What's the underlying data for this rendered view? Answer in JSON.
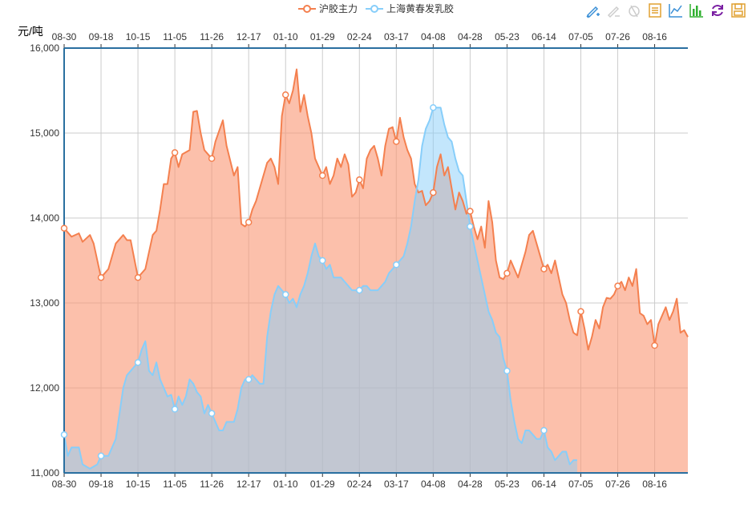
{
  "legend": [
    {
      "name": "沪胶主力",
      "color": "#f4804f"
    },
    {
      "name": "上海黄春发乳胶",
      "color": "#87cefa"
    }
  ],
  "toolbox": [
    {
      "name": "mark-icon",
      "color": "#3a8fd6"
    },
    {
      "name": "mark-undo-icon",
      "color": "#cccccc"
    },
    {
      "name": "mark-clear-icon",
      "color": "#cccccc"
    },
    {
      "name": "data-view-icon",
      "color": "#e0a030"
    },
    {
      "name": "line-chart-icon",
      "color": "#3a8fd6"
    },
    {
      "name": "bar-chart-icon",
      "color": "#30b030"
    },
    {
      "name": "restore-icon",
      "color": "#7a1fa2"
    },
    {
      "name": "save-image-icon",
      "color": "#e0a030"
    }
  ],
  "chart_data": {
    "type": "area",
    "ylabel": "元/吨",
    "ylim": [
      11000,
      16000
    ],
    "yticks": [
      11000,
      12000,
      13000,
      14000,
      15000,
      16000
    ],
    "ytick_labels": [
      "11,000",
      "12,000",
      "13,000",
      "14,000",
      "15,000",
      "16,000"
    ],
    "xtick_labels": [
      "08-30",
      "09-18",
      "10-15",
      "11-05",
      "11-26",
      "12-17",
      "01-10",
      "01-29",
      "02-24",
      "03-17",
      "04-08",
      "04-28",
      "05-23",
      "06-14",
      "07-05",
      "07-26",
      "08-16"
    ],
    "n_points": 170,
    "grid": true,
    "legend_position": "top-center",
    "series": [
      {
        "name": "沪胶主力",
        "color": "#f4804f",
        "fill": "rgba(250,150,115,0.6)",
        "points": [
          [
            0,
            13880
          ],
          [
            2,
            13780
          ],
          [
            4,
            13820
          ],
          [
            5,
            13720
          ],
          [
            7,
            13800
          ],
          [
            8,
            13700
          ],
          [
            10,
            13300
          ],
          [
            12,
            13400
          ],
          [
            13,
            13550
          ],
          [
            14,
            13700
          ],
          [
            16,
            13800
          ],
          [
            17,
            13740
          ],
          [
            18,
            13740
          ],
          [
            20,
            13300
          ],
          [
            21,
            13350
          ],
          [
            22,
            13400
          ],
          [
            24,
            13800
          ],
          [
            25,
            13850
          ],
          [
            26,
            14100
          ],
          [
            27,
            14400
          ],
          [
            28,
            14400
          ],
          [
            29,
            14700
          ],
          [
            30,
            14770
          ],
          [
            31,
            14600
          ],
          [
            32,
            14750
          ],
          [
            34,
            14800
          ],
          [
            35,
            15250
          ],
          [
            36,
            15260
          ],
          [
            37,
            15000
          ],
          [
            38,
            14800
          ],
          [
            40,
            14700
          ],
          [
            41,
            14900
          ],
          [
            43,
            15150
          ],
          [
            44,
            14850
          ],
          [
            46,
            14500
          ],
          [
            47,
            14600
          ],
          [
            48,
            13930
          ],
          [
            49,
            13900
          ],
          [
            50,
            13950
          ],
          [
            51,
            14100
          ],
          [
            52,
            14200
          ],
          [
            53,
            14350
          ],
          [
            54,
            14500
          ],
          [
            55,
            14650
          ],
          [
            56,
            14700
          ],
          [
            57,
            14600
          ],
          [
            58,
            14400
          ],
          [
            59,
            15200
          ],
          [
            60,
            15450
          ],
          [
            61,
            15350
          ],
          [
            62,
            15500
          ],
          [
            63,
            15750
          ],
          [
            64,
            15250
          ],
          [
            65,
            15450
          ],
          [
            66,
            15200
          ],
          [
            67,
            15000
          ],
          [
            68,
            14700
          ],
          [
            69,
            14600
          ],
          [
            70,
            14500
          ],
          [
            71,
            14600
          ],
          [
            72,
            14400
          ],
          [
            73,
            14500
          ],
          [
            74,
            14700
          ],
          [
            75,
            14600
          ],
          [
            76,
            14750
          ],
          [
            77,
            14630
          ],
          [
            78,
            14250
          ],
          [
            79,
            14300
          ],
          [
            80,
            14450
          ],
          [
            81,
            14350
          ],
          [
            82,
            14700
          ],
          [
            83,
            14800
          ],
          [
            84,
            14850
          ],
          [
            85,
            14700
          ],
          [
            86,
            14500
          ],
          [
            87,
            14850
          ],
          [
            88,
            15050
          ],
          [
            89,
            15070
          ],
          [
            90,
            14900
          ],
          [
            91,
            15180
          ],
          [
            92,
            14950
          ],
          [
            93,
            14800
          ],
          [
            94,
            14700
          ],
          [
            95,
            14400
          ],
          [
            96,
            14300
          ],
          [
            97,
            14320
          ],
          [
            98,
            14150
          ],
          [
            99,
            14200
          ],
          [
            100,
            14300
          ],
          [
            101,
            14600
          ],
          [
            102,
            14750
          ],
          [
            103,
            14500
          ],
          [
            104,
            14600
          ],
          [
            105,
            14350
          ],
          [
            106,
            14100
          ],
          [
            107,
            14300
          ],
          [
            108,
            14200
          ],
          [
            109,
            14050
          ],
          [
            110,
            14080
          ],
          [
            111,
            13900
          ],
          [
            112,
            13750
          ],
          [
            113,
            13900
          ],
          [
            114,
            13650
          ],
          [
            115,
            14200
          ],
          [
            116,
            13950
          ],
          [
            117,
            13500
          ],
          [
            118,
            13300
          ],
          [
            119,
            13280
          ],
          [
            120,
            13350
          ],
          [
            121,
            13500
          ],
          [
            122,
            13400
          ],
          [
            123,
            13300
          ],
          [
            124,
            13450
          ],
          [
            125,
            13600
          ],
          [
            126,
            13800
          ],
          [
            127,
            13850
          ],
          [
            128,
            13700
          ],
          [
            129,
            13550
          ],
          [
            130,
            13400
          ],
          [
            131,
            13450
          ],
          [
            132,
            13350
          ],
          [
            133,
            13500
          ],
          [
            134,
            13300
          ],
          [
            135,
            13100
          ],
          [
            136,
            13000
          ],
          [
            137,
            12800
          ],
          [
            138,
            12650
          ],
          [
            139,
            12620
          ],
          [
            140,
            12900
          ],
          [
            141,
            12700
          ],
          [
            142,
            12450
          ],
          [
            143,
            12600
          ],
          [
            144,
            12800
          ],
          [
            145,
            12700
          ],
          [
            146,
            12950
          ],
          [
            147,
            13060
          ],
          [
            148,
            13050
          ],
          [
            149,
            13100
          ],
          [
            150,
            13200
          ],
          [
            151,
            13250
          ],
          [
            152,
            13150
          ],
          [
            153,
            13300
          ],
          [
            154,
            13200
          ],
          [
            155,
            13400
          ],
          [
            156,
            12880
          ],
          [
            157,
            12850
          ],
          [
            158,
            12750
          ],
          [
            159,
            12800
          ],
          [
            160,
            12500
          ],
          [
            161,
            12750
          ],
          [
            162,
            12850
          ],
          [
            163,
            12950
          ],
          [
            164,
            12800
          ],
          [
            165,
            12900
          ],
          [
            166,
            13050
          ],
          [
            167,
            12650
          ],
          [
            168,
            12680
          ],
          [
            169,
            12600
          ]
        ]
      },
      {
        "name": "上海黄春发乳胶",
        "color": "#87cefa",
        "fill": "rgba(135,206,250,0.5)",
        "points": [
          [
            0,
            11450
          ],
          [
            1,
            11200
          ],
          [
            2,
            11300
          ],
          [
            4,
            11300
          ],
          [
            5,
            11100
          ],
          [
            7,
            11050
          ],
          [
            9,
            11100
          ],
          [
            10,
            11200
          ],
          [
            12,
            11200
          ],
          [
            14,
            11400
          ],
          [
            15,
            11700
          ],
          [
            16,
            12000
          ],
          [
            17,
            12150
          ],
          [
            18,
            12200
          ],
          [
            19,
            12250
          ],
          [
            20,
            12300
          ],
          [
            21,
            12450
          ],
          [
            22,
            12550
          ],
          [
            23,
            12200
          ],
          [
            24,
            12150
          ],
          [
            25,
            12300
          ],
          [
            26,
            12100
          ],
          [
            27,
            12000
          ],
          [
            28,
            11900
          ],
          [
            29,
            11920
          ],
          [
            30,
            11750
          ],
          [
            31,
            11900
          ],
          [
            32,
            11800
          ],
          [
            33,
            11900
          ],
          [
            34,
            12100
          ],
          [
            35,
            12050
          ],
          [
            36,
            11950
          ],
          [
            37,
            11900
          ],
          [
            38,
            11700
          ],
          [
            39,
            11800
          ],
          [
            40,
            11700
          ],
          [
            41,
            11600
          ],
          [
            42,
            11500
          ],
          [
            43,
            11500
          ],
          [
            44,
            11600
          ],
          [
            45,
            11600
          ],
          [
            46,
            11600
          ],
          [
            47,
            11750
          ],
          [
            48,
            12000
          ],
          [
            49,
            12100
          ],
          [
            50,
            12100
          ],
          [
            51,
            12150
          ],
          [
            52,
            12100
          ],
          [
            53,
            12050
          ],
          [
            54,
            12050
          ],
          [
            55,
            12600
          ],
          [
            56,
            12900
          ],
          [
            57,
            13100
          ],
          [
            58,
            13200
          ],
          [
            59,
            13150
          ],
          [
            60,
            13100
          ],
          [
            61,
            13000
          ],
          [
            62,
            13050
          ],
          [
            63,
            12950
          ],
          [
            64,
            13100
          ],
          [
            65,
            13200
          ],
          [
            66,
            13350
          ],
          [
            67,
            13550
          ],
          [
            68,
            13700
          ],
          [
            69,
            13550
          ],
          [
            70,
            13500
          ],
          [
            71,
            13400
          ],
          [
            72,
            13450
          ],
          [
            73,
            13300
          ],
          [
            74,
            13300
          ],
          [
            75,
            13300
          ],
          [
            76,
            13250
          ],
          [
            77,
            13200
          ],
          [
            78,
            13150
          ],
          [
            79,
            13150
          ],
          [
            80,
            13150
          ],
          [
            81,
            13200
          ],
          [
            82,
            13200
          ],
          [
            83,
            13150
          ],
          [
            84,
            13150
          ],
          [
            85,
            13150
          ],
          [
            86,
            13200
          ],
          [
            87,
            13250
          ],
          [
            88,
            13350
          ],
          [
            89,
            13400
          ],
          [
            90,
            13450
          ],
          [
            91,
            13500
          ],
          [
            92,
            13550
          ],
          [
            93,
            13700
          ],
          [
            94,
            13900
          ],
          [
            95,
            14200
          ],
          [
            96,
            14450
          ],
          [
            97,
            14850
          ],
          [
            98,
            15050
          ],
          [
            99,
            15150
          ],
          [
            100,
            15300
          ],
          [
            101,
            15300
          ],
          [
            102,
            15300
          ],
          [
            103,
            15100
          ],
          [
            104,
            14950
          ],
          [
            105,
            14900
          ],
          [
            106,
            14700
          ],
          [
            107,
            14550
          ],
          [
            108,
            14500
          ],
          [
            109,
            14200
          ],
          [
            110,
            13900
          ],
          [
            111,
            13700
          ],
          [
            112,
            13500
          ],
          [
            113,
            13300
          ],
          [
            114,
            13100
          ],
          [
            115,
            12900
          ],
          [
            116,
            12800
          ],
          [
            117,
            12650
          ],
          [
            118,
            12600
          ],
          [
            119,
            12350
          ],
          [
            120,
            12200
          ],
          [
            121,
            11850
          ],
          [
            122,
            11600
          ],
          [
            123,
            11400
          ],
          [
            124,
            11350
          ],
          [
            125,
            11500
          ],
          [
            126,
            11500
          ],
          [
            127,
            11450
          ],
          [
            128,
            11400
          ],
          [
            129,
            11400
          ],
          [
            130,
            11500
          ],
          [
            131,
            11300
          ],
          [
            132,
            11250
          ],
          [
            133,
            11150
          ],
          [
            134,
            11200
          ],
          [
            135,
            11250
          ],
          [
            136,
            11250
          ],
          [
            137,
            11100
          ],
          [
            138,
            11150
          ],
          [
            139,
            11150
          ]
        ]
      }
    ]
  }
}
